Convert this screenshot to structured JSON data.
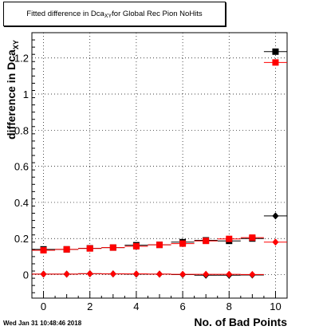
{
  "chart_data": {
    "type": "scatter",
    "title_main": "Fitted difference in Dca",
    "title_sub": "XY",
    "title_rest": " for Global Rec Pion NoHits",
    "ylabel_main": "difference in Dca",
    "ylabel_sub": "XY",
    "xlabel": "No. of Bad Points",
    "xlim": [
      -0.5,
      10.5
    ],
    "ylim": [
      -0.13,
      1.34
    ],
    "x_ticks": [
      0,
      2,
      4,
      6,
      8,
      10
    ],
    "y_ticks": [
      0,
      0.2,
      0.4,
      0.6,
      0.8,
      1,
      1.2
    ],
    "y_tick_labels": [
      "0",
      "0.2",
      "0.4",
      "0.6",
      "0.8",
      "1",
      "1.2"
    ],
    "grid": true,
    "series": [
      {
        "marker": "square",
        "color": "#000000",
        "x": [
          0,
          1,
          2,
          3,
          4,
          5,
          6,
          7,
          8,
          9,
          10
        ],
        "y": [
          0.14,
          0.14,
          0.146,
          0.15,
          0.163,
          0.165,
          0.18,
          0.19,
          0.187,
          0.2,
          1.235
        ]
      },
      {
        "marker": "diamond",
        "color": "#000000",
        "x": [
          0,
          1,
          2,
          3,
          4,
          5,
          6,
          7,
          8,
          9,
          10
        ],
        "y": [
          0.003,
          0.003,
          0.005,
          0.004,
          0.003,
          0.003,
          0.0,
          -0.003,
          -0.003,
          -0.002,
          0.325
        ]
      },
      {
        "marker": "square",
        "color": "#ff0000",
        "x": [
          0,
          1,
          2,
          3,
          4,
          5,
          6,
          7,
          8,
          9,
          10
        ],
        "y": [
          0.135,
          0.14,
          0.145,
          0.15,
          0.157,
          0.165,
          0.172,
          0.187,
          0.198,
          0.205,
          1.175
        ]
      },
      {
        "marker": "diamond",
        "color": "#ff0000",
        "x": [
          0,
          1,
          2,
          3,
          4,
          5,
          6,
          7,
          8,
          9,
          10
        ],
        "y": [
          0.003,
          0.003,
          0.005,
          0.004,
          0.004,
          0.003,
          0.002,
          0.002,
          0.002,
          0.001,
          0.18
        ]
      }
    ]
  },
  "footer": {
    "timestamp": "Wed Jan 31 10:48:46 2018"
  }
}
